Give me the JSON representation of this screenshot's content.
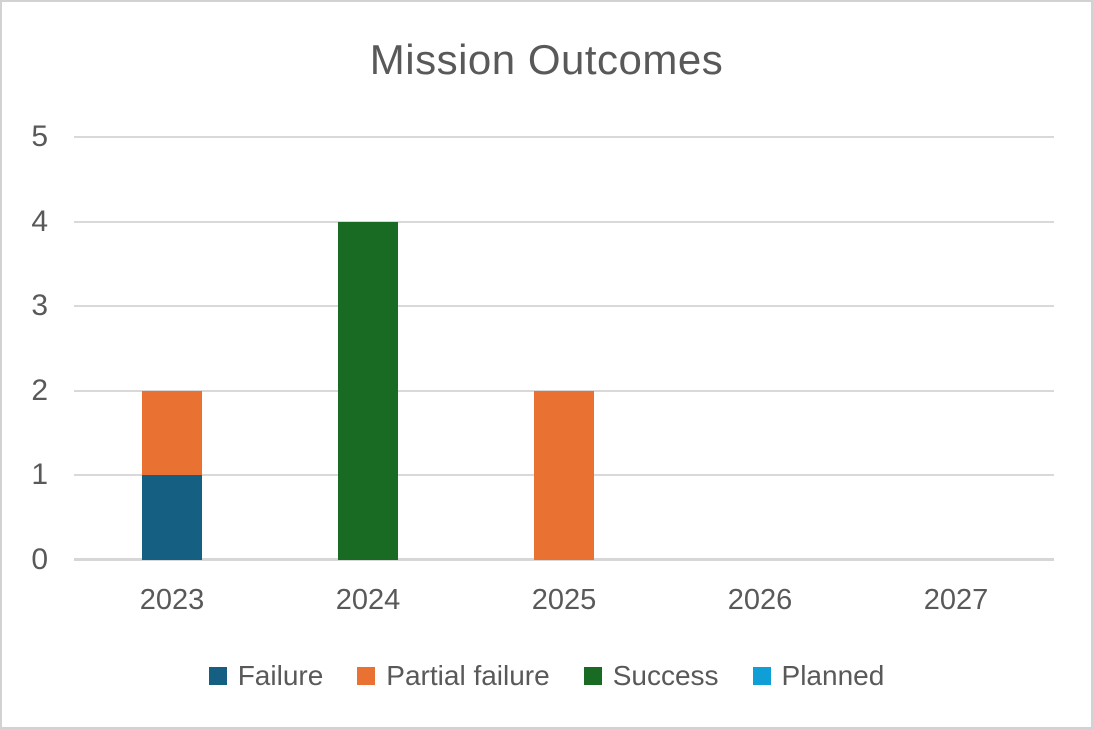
{
  "chart_data": {
    "type": "bar",
    "stacked": true,
    "title": "Mission Outcomes",
    "xlabel": "",
    "ylabel": "",
    "categories": [
      "2023",
      "2024",
      "2025",
      "2026",
      "2027"
    ],
    "series": [
      {
        "name": "Failure",
        "color": "#156082",
        "values": [
          1,
          0,
          0,
          0,
          0
        ]
      },
      {
        "name": "Partial failure",
        "color": "#E97132",
        "values": [
          1,
          0,
          2,
          0,
          0
        ]
      },
      {
        "name": "Success",
        "color": "#196B24",
        "values": [
          0,
          4,
          0,
          0,
          0
        ]
      },
      {
        "name": "Planned",
        "color": "#0F9ED5",
        "values": [
          0,
          0,
          0,
          0,
          0
        ]
      }
    ],
    "ylim": [
      0,
      5
    ],
    "yticks": [
      0,
      1,
      2,
      3,
      4,
      5
    ],
    "grid": true,
    "legend_position": "bottom",
    "text_color": "#595959",
    "gridline_color": "#D9D9D9"
  }
}
